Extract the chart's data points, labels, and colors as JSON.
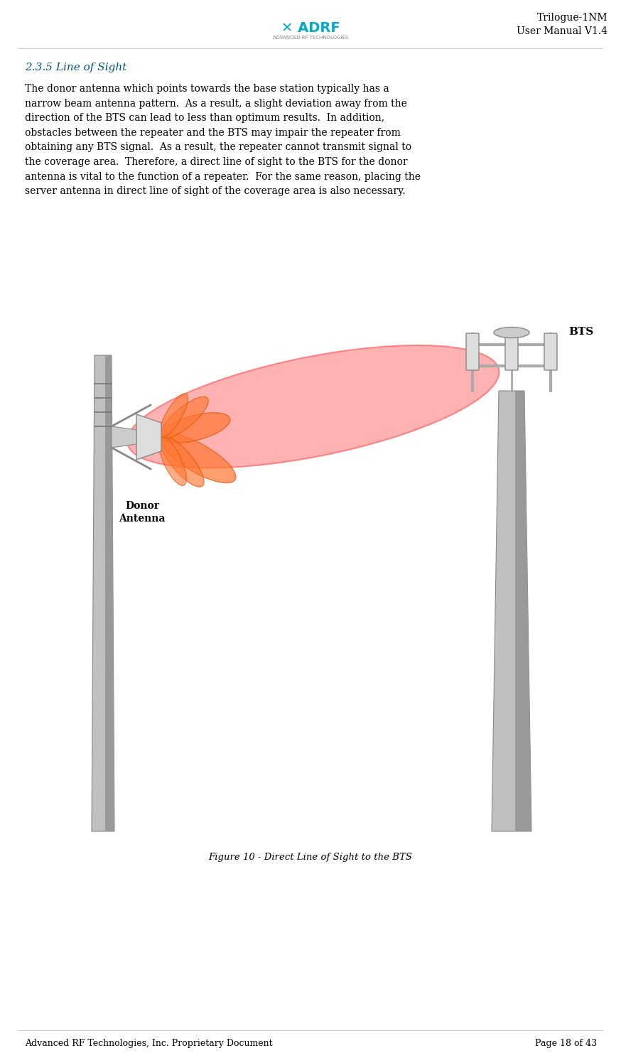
{
  "title_right": "Trilogue-1NM\nUser Manual V1.4",
  "section_title": "2.3.5 Line of Sight",
  "body_text": "The donor antenna which points towards the base station typically has a\nnarrow beam antenna pattern.  As a result, a slight deviation away from the\ndirection of the BTS can lead to less than optimum results.  In addition,\nobstacles between the repeater and the BTS may impair the repeater from\nobtaining any BTS signal.  As a result, the repeater cannot transmit signal to\nthe coverage area.  Therefore, a direct line of sight to the BTS for the donor\nantenna is vital to the function of a repeater.  For the same reason, placing the\nserver antenna in direct line of sight of the coverage area is also necessary.",
  "figure_caption": "Figure 10 - Direct Line of Sight to the BTS",
  "footer_left": "Advanced RF Technologies, Inc. Proprietary Document",
  "footer_right": "Page 18 of 43",
  "bg_color": "#ffffff",
  "text_color": "#000000",
  "bts_label": "BTS",
  "donor_label": "Donor\nAntenna",
  "beam_main_color": "#ff9999",
  "beam_main_edge": "#ff6666",
  "beam_side_color": "#ff7733",
  "beam_side_edge": "#dd5500",
  "pole_color": "#aaaaaa",
  "pole_dark": "#888888",
  "tower_color": "#bbbbbb",
  "tower_dark": "#888888"
}
